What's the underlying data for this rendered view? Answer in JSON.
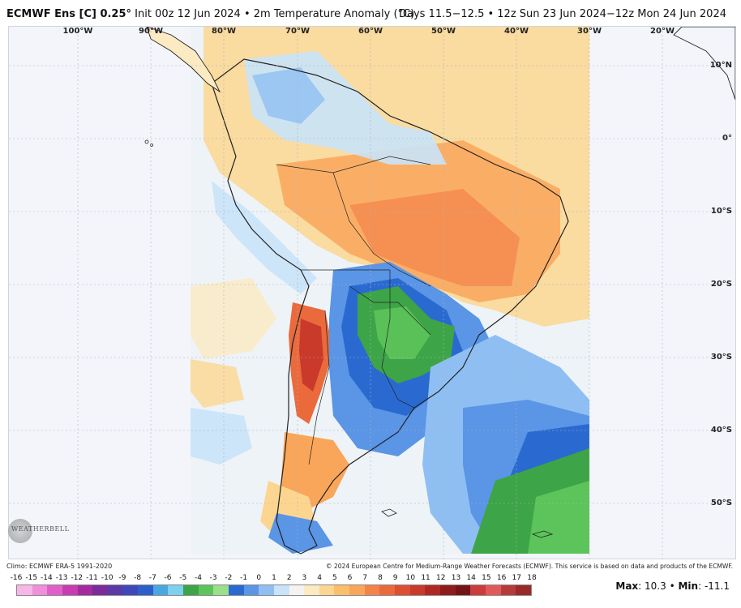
{
  "header": {
    "model": "ECMWF Ens [C] 0.25°",
    "init": "Init 00z 12 Jun 2024",
    "separator": "•",
    "field": "2m Temperature Anomaly (°C)",
    "valid": "Days 11.5−12.5 • 12z Sun 23 Jun 2024−12z Mon 24 Jun 2024"
  },
  "map": {
    "longitude_labels": [
      "100°W",
      "90°W",
      "80°W",
      "70°W",
      "60°W",
      "50°W",
      "40°W",
      "30°W",
      "20°W"
    ],
    "latitude_labels": [
      "10°N",
      "0°",
      "10°S",
      "20°S",
      "30°S",
      "40°S",
      "50°S"
    ],
    "region": "South America"
  },
  "footer": {
    "climo": "Climo: ECMWF ERA-5 1991-2020",
    "copyright": "© 2024 European Centre for Medium-Range Weather Forecasts (ECMWF). This service is based on data and products of the ECMWF."
  },
  "colorbar": {
    "labels": [
      "-16",
      "-15",
      "-14",
      "-13",
      "-12",
      "-11",
      "-10",
      "-9",
      "-8",
      "-7",
      "-6",
      "-5",
      "-4",
      "-3",
      "-2",
      "-1",
      "0",
      "1",
      "2",
      "3",
      "4",
      "5",
      "6",
      "7",
      "8",
      "9",
      "10",
      "11",
      "12",
      "13",
      "14",
      "15",
      "16",
      "17",
      "18"
    ],
    "colors": [
      "#f7b6e6",
      "#ef8fd9",
      "#e060c8",
      "#c93bb0",
      "#a32a9f",
      "#7a2c9a",
      "#5a3aa6",
      "#3f48b8",
      "#2c5fc9",
      "#4aa7e0",
      "#7dd0ee",
      "#3da447",
      "#5cc45a",
      "#9ae08a",
      "#2a6ad0",
      "#5a95e6",
      "#8fbff2",
      "#c9e3f8",
      "#f5f3f0",
      "#fbeac2",
      "#fcd690",
      "#fbbf6b",
      "#f9a65a",
      "#f4834a",
      "#ea6a3c",
      "#dc4f31",
      "#c93a2a",
      "#b02824",
      "#8f1b1d",
      "#741417",
      "#cc3c3c",
      "#e05a5a",
      "#b73a3a",
      "#9a2a2a"
    ],
    "max_label": "Max",
    "max_value": "10.3",
    "min_label": "Min",
    "min_value": "-11.1",
    "bullet": "•"
  },
  "logo": {
    "text": "WEATHERBELL"
  }
}
